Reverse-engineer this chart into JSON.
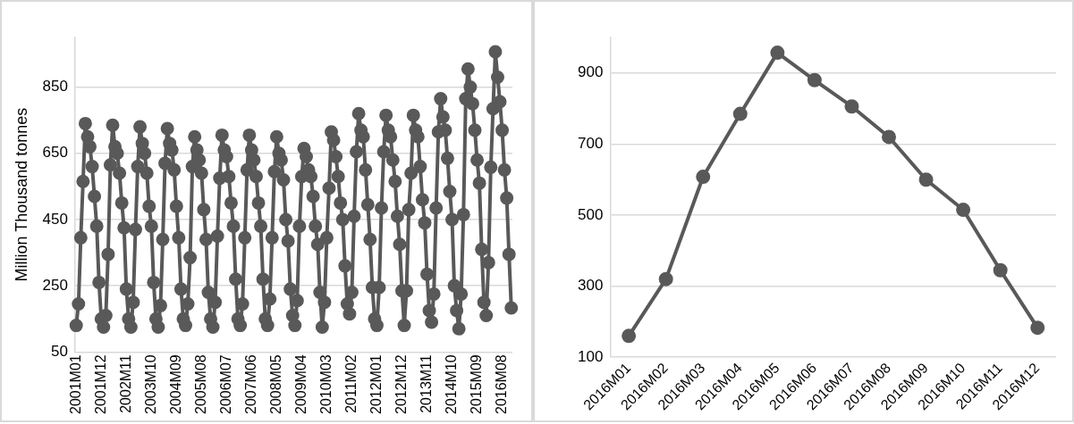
{
  "chart_data": [
    {
      "type": "line",
      "ylabel": "Million Thousand tonnes",
      "grid": "y",
      "marker": "circle",
      "ylim": [
        50,
        1000
      ],
      "yticks": [
        50,
        250,
        450,
        650,
        850
      ],
      "categories": [
        "2001M01",
        null,
        null,
        null,
        null,
        null,
        null,
        null,
        null,
        null,
        null,
        "2001M12",
        null,
        null,
        null,
        null,
        null,
        null,
        null,
        null,
        null,
        null,
        "2002M11",
        null,
        null,
        null,
        null,
        null,
        null,
        null,
        null,
        null,
        null,
        "2003M10",
        null,
        null,
        null,
        null,
        null,
        null,
        null,
        null,
        null,
        null,
        "2004M09",
        null,
        null,
        null,
        null,
        null,
        null,
        null,
        null,
        null,
        null,
        "2005M08",
        null,
        null,
        null,
        null,
        null,
        null,
        null,
        null,
        null,
        null,
        "2006M07",
        null,
        null,
        null,
        null,
        null,
        null,
        null,
        null,
        null,
        null,
        "2007M06",
        null,
        null,
        null,
        null,
        null,
        null,
        null,
        null,
        null,
        null,
        "2008M05",
        null,
        null,
        null,
        null,
        null,
        null,
        null,
        null,
        null,
        null,
        "2009M04",
        null,
        null,
        null,
        null,
        null,
        null,
        null,
        null,
        null,
        null,
        "2010M03",
        null,
        null,
        null,
        null,
        null,
        null,
        null,
        null,
        null,
        null,
        "2011M02",
        null,
        null,
        null,
        null,
        null,
        null,
        null,
        null,
        null,
        null,
        "2012M01",
        null,
        null,
        null,
        null,
        null,
        null,
        null,
        null,
        null,
        null,
        "2012M12",
        null,
        null,
        null,
        null,
        null,
        null,
        null,
        null,
        null,
        null,
        "2013M11",
        null,
        null,
        null,
        null,
        null,
        null,
        null,
        null,
        null,
        null,
        "2014M10",
        null,
        null,
        null,
        null,
        null,
        null,
        null,
        null,
        null,
        null,
        "2015M09",
        null,
        null,
        null,
        null,
        null,
        null,
        null,
        null,
        null,
        null,
        "2016M08",
        null,
        null,
        null,
        null
      ],
      "series": [
        {
          "color": "#595959",
          "values": [
            130,
            195,
            395,
            565,
            740,
            700,
            670,
            610,
            520,
            430,
            260,
            150,
            125,
            160,
            345,
            615,
            735,
            670,
            650,
            590,
            500,
            425,
            240,
            150,
            125,
            200,
            420,
            610,
            730,
            680,
            650,
            590,
            490,
            430,
            260,
            150,
            125,
            190,
            390,
            620,
            725,
            680,
            660,
            600,
            490,
            395,
            240,
            150,
            130,
            195,
            335,
            610,
            700,
            660,
            630,
            590,
            480,
            390,
            230,
            150,
            125,
            200,
            400,
            575,
            705,
            660,
            640,
            580,
            500,
            430,
            270,
            150,
            130,
            195,
            395,
            600,
            705,
            660,
            630,
            580,
            500,
            430,
            270,
            150,
            130,
            210,
            395,
            595,
            700,
            650,
            630,
            570,
            450,
            385,
            240,
            160,
            130,
            205,
            430,
            580,
            665,
            640,
            600,
            580,
            520,
            430,
            375,
            230,
            125,
            200,
            395,
            545,
            715,
            690,
            640,
            580,
            500,
            450,
            310,
            195,
            165,
            230,
            460,
            655,
            770,
            720,
            700,
            600,
            495,
            390,
            245,
            150,
            130,
            245,
            485,
            655,
            765,
            720,
            700,
            630,
            565,
            460,
            375,
            235,
            130,
            235,
            480,
            590,
            765,
            720,
            700,
            610,
            510,
            440,
            285,
            175,
            140,
            225,
            485,
            715,
            815,
            760,
            720,
            635,
            535,
            450,
            250,
            175,
            120,
            225,
            465,
            815,
            905,
            850,
            800,
            720,
            630,
            560,
            360,
            200,
            160,
            320,
            608,
            785,
            957,
            880,
            806,
            720,
            600,
            515,
            345,
            183
          ]
        }
      ]
    },
    {
      "type": "line",
      "grid": "y",
      "marker": "circle",
      "ylim": [
        100,
        1000
      ],
      "yticks": [
        100,
        300,
        500,
        700,
        900
      ],
      "categories": [
        "2016M01",
        "2016M02",
        "2016M03",
        "2016M04",
        "2016M05",
        "2016M06",
        "2016M07",
        "2016M08",
        "2016M09",
        "2016M10",
        "2016M11",
        "2016M12"
      ],
      "series": [
        {
          "color": "#595959",
          "values": [
            160,
            320,
            608,
            785,
            957,
            880,
            806,
            720,
            600,
            515,
            345,
            183
          ]
        }
      ]
    }
  ]
}
